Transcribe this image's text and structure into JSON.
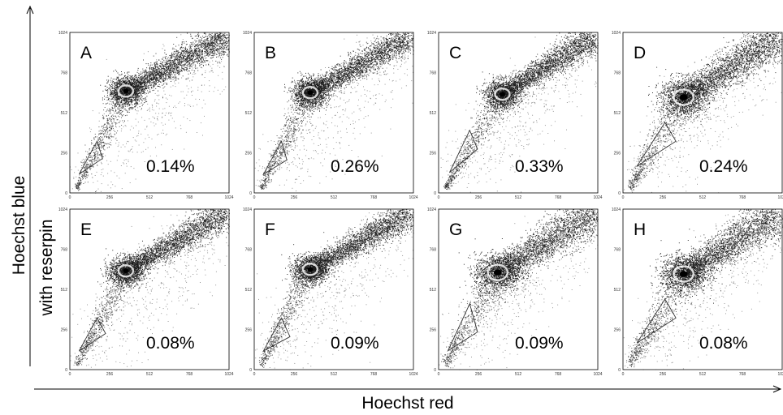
{
  "chart_data": {
    "type": "scatter",
    "description_axes": {
      "xlabel": "Hoechst red",
      "ylabel_line1": "Hoechst blue",
      "ylabel_line2": "with reserpin"
    },
    "axis_ticks": [
      "0",
      "256",
      "512",
      "768",
      "1024"
    ],
    "xlim": [
      0,
      1024
    ],
    "ylim": [
      0,
      1024
    ],
    "panels": [
      {
        "label": "A",
        "percentage": "0.14%",
        "core": [
          360,
          650
        ],
        "spread": 1.0,
        "gate": [
          [
            60,
            120
          ],
          [
            210,
            220
          ],
          [
            175,
            330
          ]
        ]
      },
      {
        "label": "B",
        "percentage": "0.26%",
        "core": [
          360,
          640
        ],
        "spread": 1.0,
        "gate": [
          [
            60,
            120
          ],
          [
            210,
            210
          ],
          [
            175,
            330
          ]
        ]
      },
      {
        "label": "C",
        "percentage": "0.33%",
        "core": [
          410,
          630
        ],
        "spread": 1.0,
        "gate": [
          [
            70,
            130
          ],
          [
            250,
            280
          ],
          [
            200,
            400
          ]
        ]
      },
      {
        "label": "D",
        "percentage": "0.24%",
        "core": [
          390,
          610
        ],
        "spread": 1.35,
        "gate": [
          [
            90,
            170
          ],
          [
            340,
            330
          ],
          [
            270,
            450
          ]
        ]
      },
      {
        "label": "E",
        "percentage": "0.08%",
        "core": [
          360,
          630
        ],
        "spread": 1.0,
        "gate": [
          [
            60,
            120
          ],
          [
            230,
            230
          ],
          [
            175,
            330
          ]
        ]
      },
      {
        "label": "F",
        "percentage": "0.09%",
        "core": [
          360,
          640
        ],
        "spread": 1.0,
        "gate": [
          [
            60,
            120
          ],
          [
            230,
            210
          ],
          [
            175,
            330
          ]
        ]
      },
      {
        "label": "G",
        "percentage": "0.09%",
        "core": [
          380,
          620
        ],
        "spread": 1.35,
        "gate": [
          [
            60,
            120
          ],
          [
            250,
            240
          ],
          [
            200,
            420
          ]
        ]
      },
      {
        "label": "H",
        "percentage": "0.08%",
        "core": [
          390,
          610
        ],
        "spread": 1.35,
        "gate": [
          [
            90,
            170
          ],
          [
            340,
            330
          ],
          [
            270,
            450
          ]
        ]
      }
    ]
  }
}
